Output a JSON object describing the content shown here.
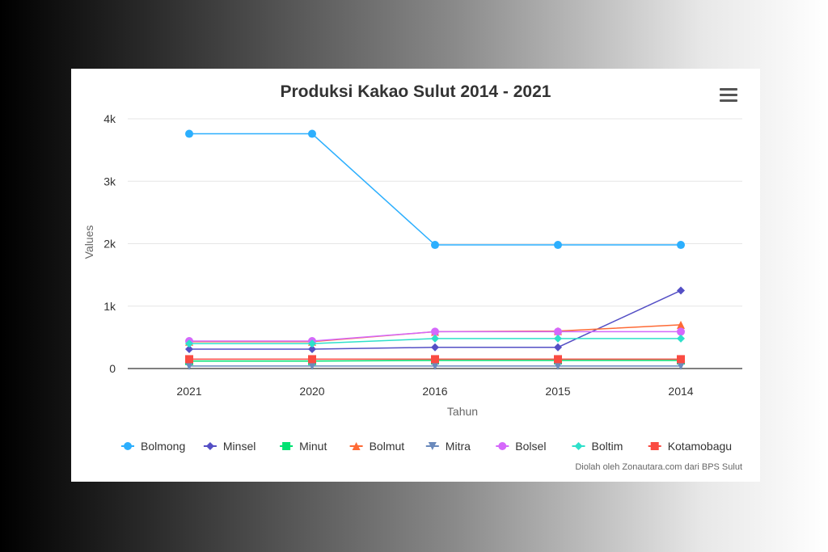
{
  "chart_data": {
    "type": "line",
    "title": "Produksi Kakao Sulut 2014 - 2021",
    "xlabel": "Tahun",
    "ylabel": "Values",
    "categories": [
      "2021",
      "2020",
      "2016",
      "2015",
      "2014"
    ],
    "yticks": [
      "0",
      "1k",
      "2k",
      "3k",
      "4k"
    ],
    "ylim": [
      0,
      4000
    ],
    "grid": true,
    "legend_position": "bottom",
    "series": [
      {
        "name": "Bolmong",
        "color": "#2caffe",
        "marker": "circle",
        "values": [
          3760,
          3760,
          1980,
          1980,
          1980
        ]
      },
      {
        "name": "Minsel",
        "color": "#544fc5",
        "marker": "diamond",
        "values": [
          310,
          310,
          340,
          340,
          1250
        ]
      },
      {
        "name": "Minut",
        "color": "#00e272",
        "marker": "square",
        "values": [
          120,
          120,
          130,
          130,
          130
        ]
      },
      {
        "name": "Bolmut",
        "color": "#fe6a35",
        "marker": "triangle",
        "values": [
          430,
          430,
          590,
          600,
          700
        ]
      },
      {
        "name": "Mitra",
        "color": "#6b8abc",
        "marker": "triangle-down",
        "values": [
          40,
          40,
          40,
          40,
          40
        ]
      },
      {
        "name": "Bolsel",
        "color": "#d568fb",
        "marker": "circle",
        "values": [
          440,
          440,
          590,
          590,
          590
        ]
      },
      {
        "name": "Boltim",
        "color": "#2ee0ca",
        "marker": "diamond",
        "values": [
          400,
          400,
          480,
          480,
          480
        ]
      },
      {
        "name": "Kotamobagu",
        "color": "#fa4b42",
        "marker": "square",
        "values": [
          150,
          150,
          150,
          150,
          150
        ]
      }
    ]
  },
  "ui": {
    "menu_icon": "hamburger-menu-icon",
    "credit": "Diolah oleh Zonautara.com dari BPS Sulut"
  }
}
